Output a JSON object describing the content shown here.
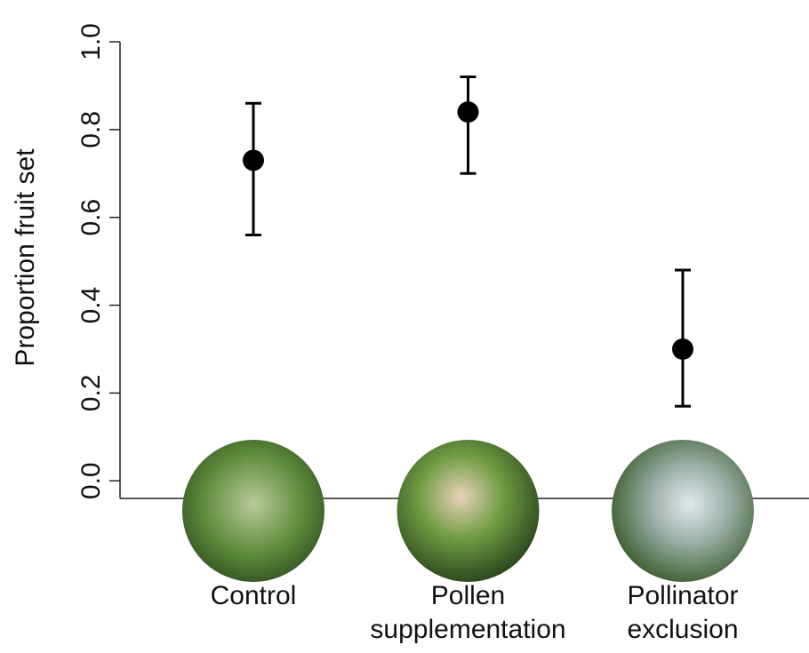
{
  "chart_data": {
    "type": "errorpoint",
    "y_label": "Proportion fruit set",
    "categories": [
      "Control",
      "Pollen supplementation",
      "Pollinator exclusion"
    ],
    "values": [
      0.73,
      0.84,
      0.3
    ],
    "lower": [
      0.56,
      0.7,
      0.17
    ],
    "upper": [
      0.86,
      0.92,
      0.48
    ],
    "color": "#000000",
    "ylim": [
      -0.04,
      1.0
    ],
    "yticks": [
      {
        "value": 0,
        "label": "0.0"
      },
      {
        "value": 0.2,
        "label": "0.2"
      },
      {
        "value": 0.4,
        "label": "0.4"
      },
      {
        "value": 0.6,
        "label": "0.6"
      },
      {
        "value": 0.8,
        "label": "0.8"
      },
      {
        "value": 1,
        "label": "1.0"
      }
    ]
  }
}
